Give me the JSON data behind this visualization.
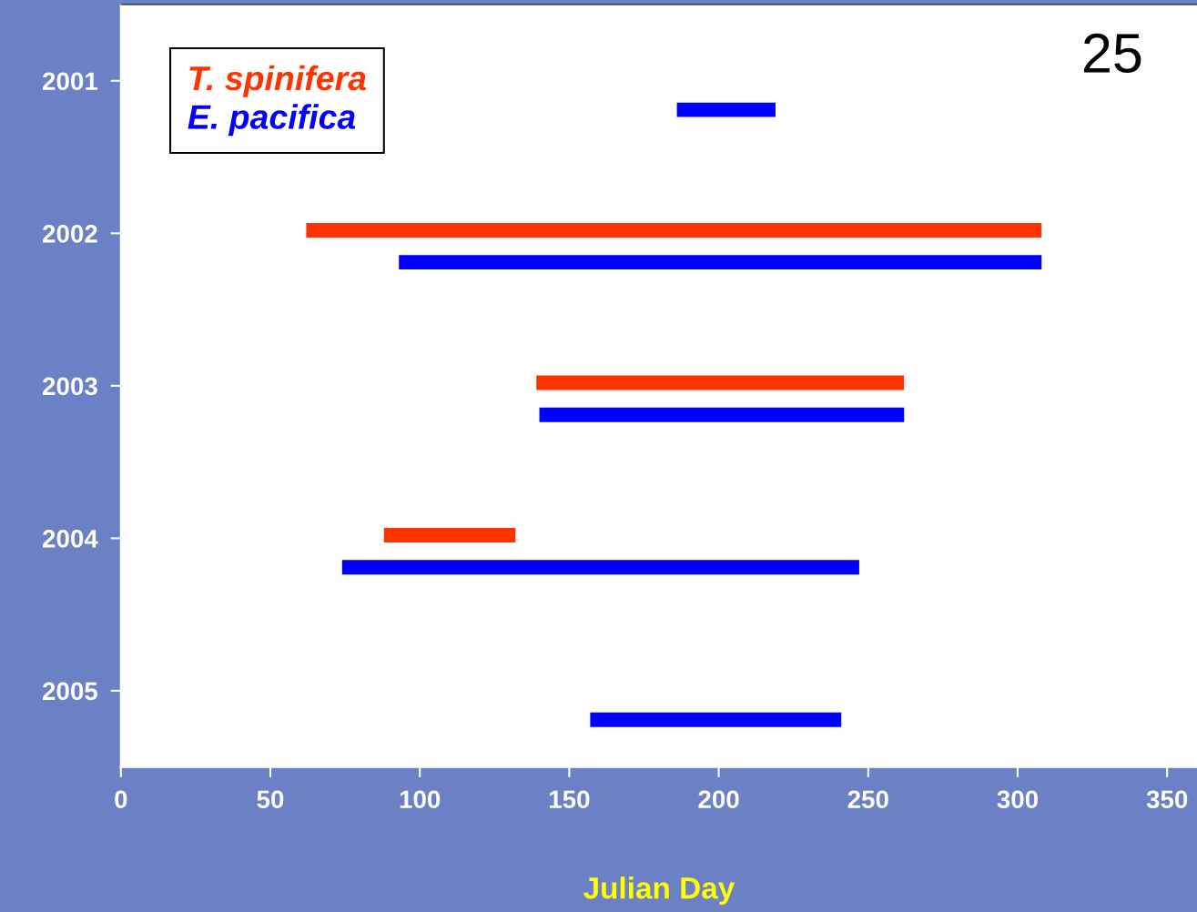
{
  "chart_data": {
    "type": "bar",
    "orientation": "horizontal",
    "xlabel": "Julian Day",
    "categories": [
      "2001",
      "2002",
      "2003",
      "2004",
      "2005"
    ],
    "series": [
      {
        "name": "T. spinifera",
        "color": "#ff3300",
        "base": [
          null,
          62,
          139,
          88,
          null
        ],
        "values": [
          null,
          246,
          123,
          44,
          null
        ]
      },
      {
        "name": "E. pacifica",
        "color": "#0000ff",
        "base": [
          186,
          93,
          140,
          74,
          157
        ],
        "values": [
          33,
          215,
          122,
          173,
          84
        ]
      }
    ],
    "xlim": [
      0,
      360
    ],
    "xticks": [
      0,
      50,
      100,
      150,
      200,
      250,
      300,
      350
    ],
    "annotations": [
      "25"
    ],
    "legend": "top left",
    "grid": false
  }
}
